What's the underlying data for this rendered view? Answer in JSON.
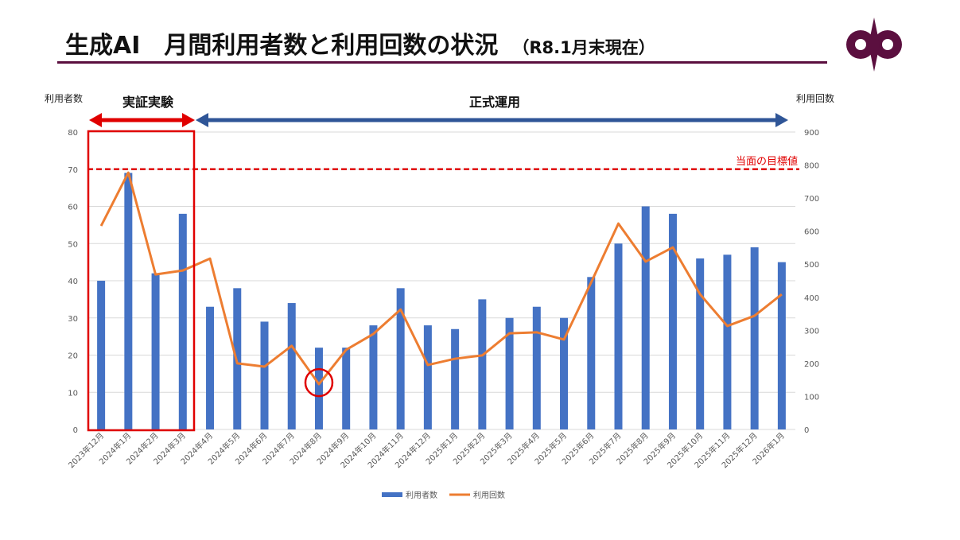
{
  "header": {
    "title": "生成AI　月間利用者数と利用回数の状況",
    "subtitle": "（R8.1月末現在）"
  },
  "colors": {
    "bars": "#4472c4",
    "line": "#ed7d31",
    "target": "#e00000",
    "brand": "#5b0f3f",
    "trial": "#e00000",
    "operation": "#2f5597"
  },
  "annotations": {
    "trial_label": "実証実験",
    "operation_label": "正式運用",
    "target_label": "当面の目標値",
    "target_value_left": 70
  },
  "chart_data": {
    "type": "bar+line",
    "ylabel": "利用者数",
    "y2label": "利用回数",
    "ylim": [
      0,
      80
    ],
    "y2lim": [
      0,
      900
    ],
    "yticks": [
      "0",
      "10",
      "20",
      "30",
      "40",
      "50",
      "60",
      "70",
      "80"
    ],
    "y2ticks": [
      "0",
      "100",
      "200",
      "300",
      "400",
      "500",
      "600",
      "700",
      "800",
      "900"
    ],
    "categories": [
      "2023年12月",
      "2024年1月",
      "2024年2月",
      "2024年3月",
      "2024年4月",
      "2024年5月",
      "2024年6月",
      "2024年7月",
      "2024年8月",
      "2024年9月",
      "2024年10月",
      "2024年11月",
      "2024年12月",
      "2025年1月",
      "2025年2月",
      "2025年3月",
      "2025年4月",
      "2025年5月",
      "2025年6月",
      "2025年7月",
      "2025年8月",
      "2025年9月",
      "2025年10月",
      "2025年11月",
      "2025年12月",
      "2026年1月"
    ],
    "series": [
      {
        "name": "利用者数",
        "type": "bar",
        "axis": "left",
        "values": [
          40,
          69,
          42,
          58,
          33,
          38,
          29,
          34,
          22,
          22,
          28,
          38,
          28,
          27,
          35,
          30,
          33,
          30,
          41,
          50,
          60,
          58,
          46,
          47,
          49,
          45
        ]
      },
      {
        "name": "利用回数",
        "type": "line",
        "axis": "right",
        "values": [
          616,
          777,
          469,
          481,
          517,
          200,
          190,
          253,
          137,
          241,
          289,
          363,
          195,
          214,
          224,
          291,
          294,
          272,
          445,
          623,
          508,
          551,
          409,
          313,
          344,
          409
        ]
      }
    ],
    "highlight_category": "2024年8月",
    "grid": true,
    "legend": "bottom"
  }
}
